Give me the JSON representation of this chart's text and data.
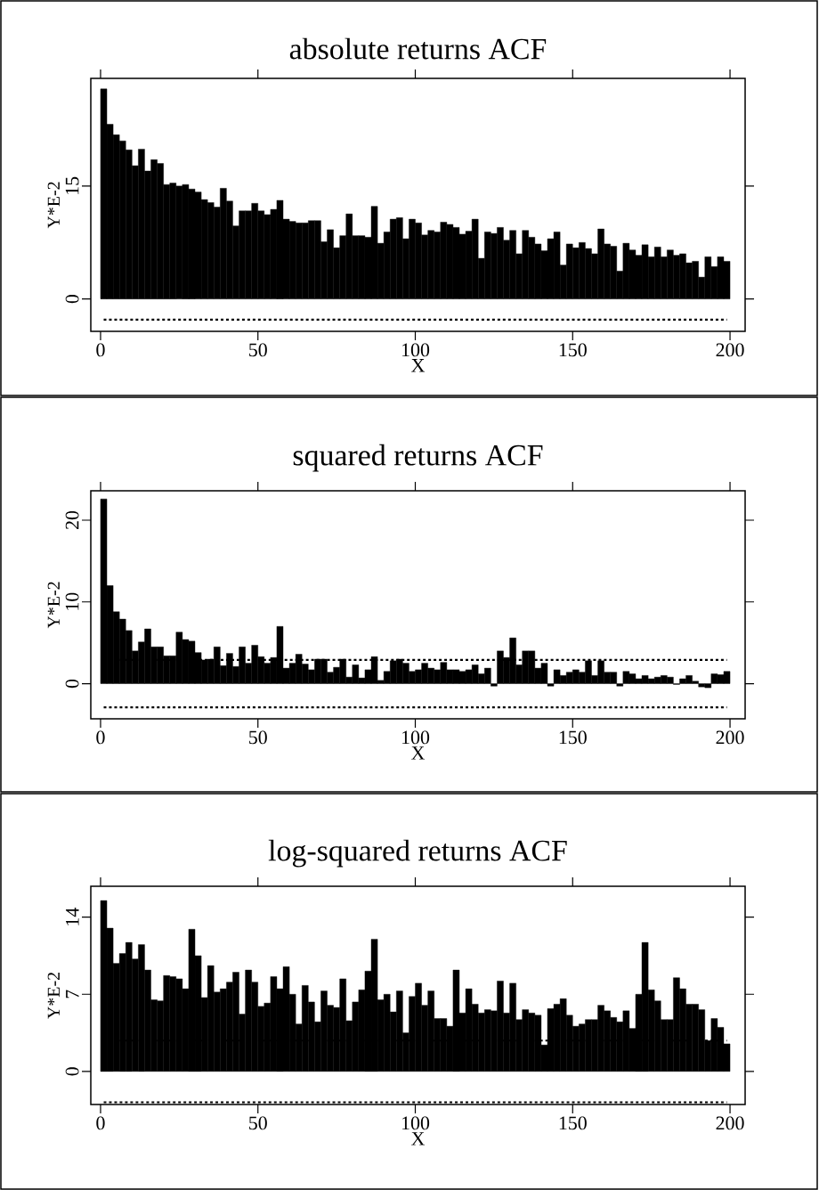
{
  "chart_data": [
    {
      "type": "bar",
      "title": "absolute returns ACF",
      "xlabel": "X",
      "ylabel": "Y*E-2",
      "xlim": [
        -3.1,
        204.8
      ],
      "ylim": [
        -4.3,
        29.3
      ],
      "xticks": [
        0,
        50,
        100,
        150,
        200
      ],
      "yticks": [
        0,
        15
      ],
      "color": "#000000",
      "ref_lines": [
        {
          "axis": "y",
          "value": -2.75,
          "line_style": "dashed"
        }
      ],
      "x": [
        1,
        3,
        5,
        7,
        9,
        11,
        13,
        15,
        17,
        19,
        21,
        23,
        25,
        27,
        29,
        31,
        33,
        35,
        37,
        39,
        41,
        43,
        45,
        47,
        49,
        51,
        53,
        55,
        57,
        59,
        61,
        63,
        65,
        67,
        69,
        71,
        73,
        75,
        77,
        79,
        81,
        83,
        85,
        87,
        89,
        91,
        93,
        95,
        97,
        99,
        101,
        103,
        105,
        107,
        109,
        111,
        113,
        115,
        117,
        119,
        121,
        123,
        125,
        127,
        129,
        131,
        133,
        135,
        137,
        139,
        141,
        143,
        145,
        147,
        149,
        151,
        153,
        155,
        157,
        159,
        161,
        163,
        165,
        167,
        169,
        171,
        173,
        175,
        177,
        179,
        181,
        183,
        185,
        187,
        189,
        191,
        193,
        195,
        197,
        199
      ],
      "values": [
        27.9,
        23.2,
        21.8,
        21.0,
        19.8,
        17.7,
        19.9,
        17.0,
        18.5,
        18.0,
        15.2,
        15.4,
        15.0,
        15.2,
        14.6,
        14.2,
        13.2,
        12.8,
        12.2,
        14.7,
        13.0,
        9.7,
        11.7,
        11.7,
        12.7,
        11.7,
        11.2,
        11.9,
        13.1,
        10.6,
        10.3,
        10.1,
        10.1,
        10.4,
        10.4,
        7.6,
        9.2,
        6.8,
        8.4,
        11.3,
        8.4,
        8.4,
        8.2,
        12.3,
        7.4,
        8.9,
        10.6,
        10.8,
        8.0,
        10.6,
        10.1,
        8.5,
        9.1,
        8.9,
        10.2,
        9.9,
        9.5,
        8.6,
        9.0,
        10.6,
        5.4,
        8.9,
        8.7,
        9.5,
        7.8,
        9.1,
        6.0,
        9.1,
        8.2,
        7.3,
        6.4,
        8.0,
        8.9,
        4.5,
        7.3,
        6.8,
        7.5,
        6.7,
        6.0,
        9.3,
        7.3,
        7.0,
        3.7,
        7.4,
        6.5,
        5.8,
        7.2,
        5.6,
        6.9,
        5.6,
        6.5,
        5.8,
        6.0,
        4.8,
        5.0,
        2.9,
        5.6,
        4.3,
        5.6,
        5.0
      ]
    },
    {
      "type": "bar",
      "title": "squared returns ACF",
      "xlabel": "X",
      "ylabel": "Y*E-2",
      "xlim": [
        -3.1,
        204.8
      ],
      "ylim": [
        -4.3,
        23.6
      ],
      "xticks": [
        0,
        50,
        100,
        150,
        200
      ],
      "yticks": [
        0,
        10,
        20
      ],
      "color": "#000000",
      "ref_lines": [
        {
          "axis": "y",
          "value": 2.9,
          "line_style": "dashed"
        },
        {
          "axis": "y",
          "value": -2.9,
          "line_style": "dashed"
        }
      ],
      "x": [
        1,
        3,
        5,
        7,
        9,
        11,
        13,
        15,
        17,
        19,
        21,
        23,
        25,
        27,
        29,
        31,
        33,
        35,
        37,
        39,
        41,
        43,
        45,
        47,
        49,
        51,
        53,
        55,
        57,
        59,
        61,
        63,
        65,
        67,
        69,
        71,
        73,
        75,
        77,
        79,
        81,
        83,
        85,
        87,
        89,
        91,
        93,
        95,
        97,
        99,
        101,
        103,
        105,
        107,
        109,
        111,
        113,
        115,
        117,
        119,
        121,
        123,
        125,
        127,
        129,
        131,
        133,
        135,
        137,
        139,
        141,
        143,
        145,
        147,
        149,
        151,
        153,
        155,
        157,
        159,
        161,
        163,
        165,
        167,
        169,
        171,
        173,
        175,
        177,
        179,
        181,
        183,
        185,
        187,
        189,
        191,
        193,
        195,
        197,
        199
      ],
      "values": [
        22.6,
        12.0,
        8.8,
        7.9,
        6.5,
        4.0,
        5.1,
        6.7,
        4.5,
        4.5,
        3.4,
        3.4,
        6.3,
        5.4,
        5.2,
        3.8,
        2.9,
        3.0,
        4.5,
        2.2,
        3.7,
        2.1,
        4.5,
        2.5,
        4.7,
        3.3,
        2.5,
        3.2,
        7.0,
        1.9,
        2.5,
        3.6,
        2.4,
        1.7,
        3.0,
        3.0,
        1.4,
        2.0,
        3.0,
        0.8,
        2.3,
        0.7,
        1.7,
        3.3,
        0.4,
        1.5,
        2.8,
        3.0,
        2.5,
        1.5,
        1.7,
        2.5,
        1.9,
        1.7,
        2.6,
        1.7,
        1.7,
        1.5,
        1.7,
        2.3,
        1.2,
        1.9,
        -0.3,
        4.0,
        3.2,
        5.6,
        2.3,
        4.0,
        4.0,
        1.9,
        2.5,
        -0.3,
        1.7,
        1.0,
        1.4,
        1.7,
        1.4,
        2.8,
        1.0,
        2.8,
        1.4,
        1.4,
        -0.3,
        1.5,
        1.2,
        0.6,
        1.0,
        0.6,
        0.8,
        1.0,
        0.8,
        -0.1,
        0.6,
        1.0,
        0.3,
        -0.4,
        -0.5,
        1.2,
        1.1,
        1.5
      ]
    },
    {
      "type": "bar",
      "title": "log-squared returns ACF",
      "xlabel": "X",
      "ylabel": "Y*E-2",
      "xlim": [
        -3.1,
        204.8
      ],
      "ylim": [
        -3.0,
        16.8
      ],
      "xticks": [
        0,
        50,
        100,
        150,
        200
      ],
      "yticks": [
        0,
        7,
        14
      ],
      "color": "#000000",
      "ref_lines": [
        {
          "axis": "y",
          "value": 2.8,
          "line_style": "dashed"
        },
        {
          "axis": "y",
          "value": -2.8,
          "line_style": "dashed"
        }
      ],
      "x": [
        1,
        3,
        5,
        7,
        9,
        11,
        13,
        15,
        17,
        19,
        21,
        23,
        25,
        27,
        29,
        31,
        33,
        35,
        37,
        39,
        41,
        43,
        45,
        47,
        49,
        51,
        53,
        55,
        57,
        59,
        61,
        63,
        65,
        67,
        69,
        71,
        73,
        75,
        77,
        79,
        81,
        83,
        85,
        87,
        89,
        91,
        93,
        95,
        97,
        99,
        101,
        103,
        105,
        107,
        109,
        111,
        113,
        115,
        117,
        119,
        121,
        123,
        125,
        127,
        129,
        131,
        133,
        135,
        137,
        139,
        141,
        143,
        145,
        147,
        149,
        151,
        153,
        155,
        157,
        159,
        161,
        163,
        165,
        167,
        169,
        171,
        173,
        175,
        177,
        179,
        181,
        183,
        185,
        187,
        189,
        191,
        193,
        195,
        197,
        199
      ],
      "values": [
        15.5,
        13.0,
        9.8,
        10.7,
        11.7,
        10.2,
        11.5,
        9.2,
        6.5,
        6.4,
        8.7,
        8.6,
        8.4,
        7.5,
        12.9,
        10.5,
        6.7,
        9.6,
        7.2,
        7.5,
        8.1,
        9.0,
        5.2,
        9.2,
        8.1,
        5.9,
        6.2,
        8.6,
        7.5,
        9.5,
        7.0,
        4.3,
        7.8,
        6.3,
        4.5,
        7.3,
        6.0,
        5.8,
        8.4,
        4.6,
        6.3,
        7.4,
        9.1,
        12.0,
        6.5,
        7.0,
        5.4,
        7.3,
        3.5,
        6.8,
        8.0,
        6.0,
        7.3,
        4.8,
        4.8,
        4.1,
        9.2,
        5.3,
        7.5,
        6.1,
        5.3,
        5.6,
        5.5,
        8.2,
        5.3,
        8.0,
        4.7,
        5.6,
        5.3,
        5.1,
        2.4,
        5.7,
        6.1,
        6.6,
        5.1,
        4.1,
        4.3,
        4.7,
        4.7,
        6.0,
        5.5,
        4.9,
        4.5,
        5.5,
        3.9,
        7.0,
        11.7,
        7.4,
        6.4,
        4.7,
        4.7,
        8.5,
        7.5,
        6.1,
        6.1,
        5.6,
        2.8,
        4.8,
        4.0,
        2.5
      ]
    }
  ]
}
